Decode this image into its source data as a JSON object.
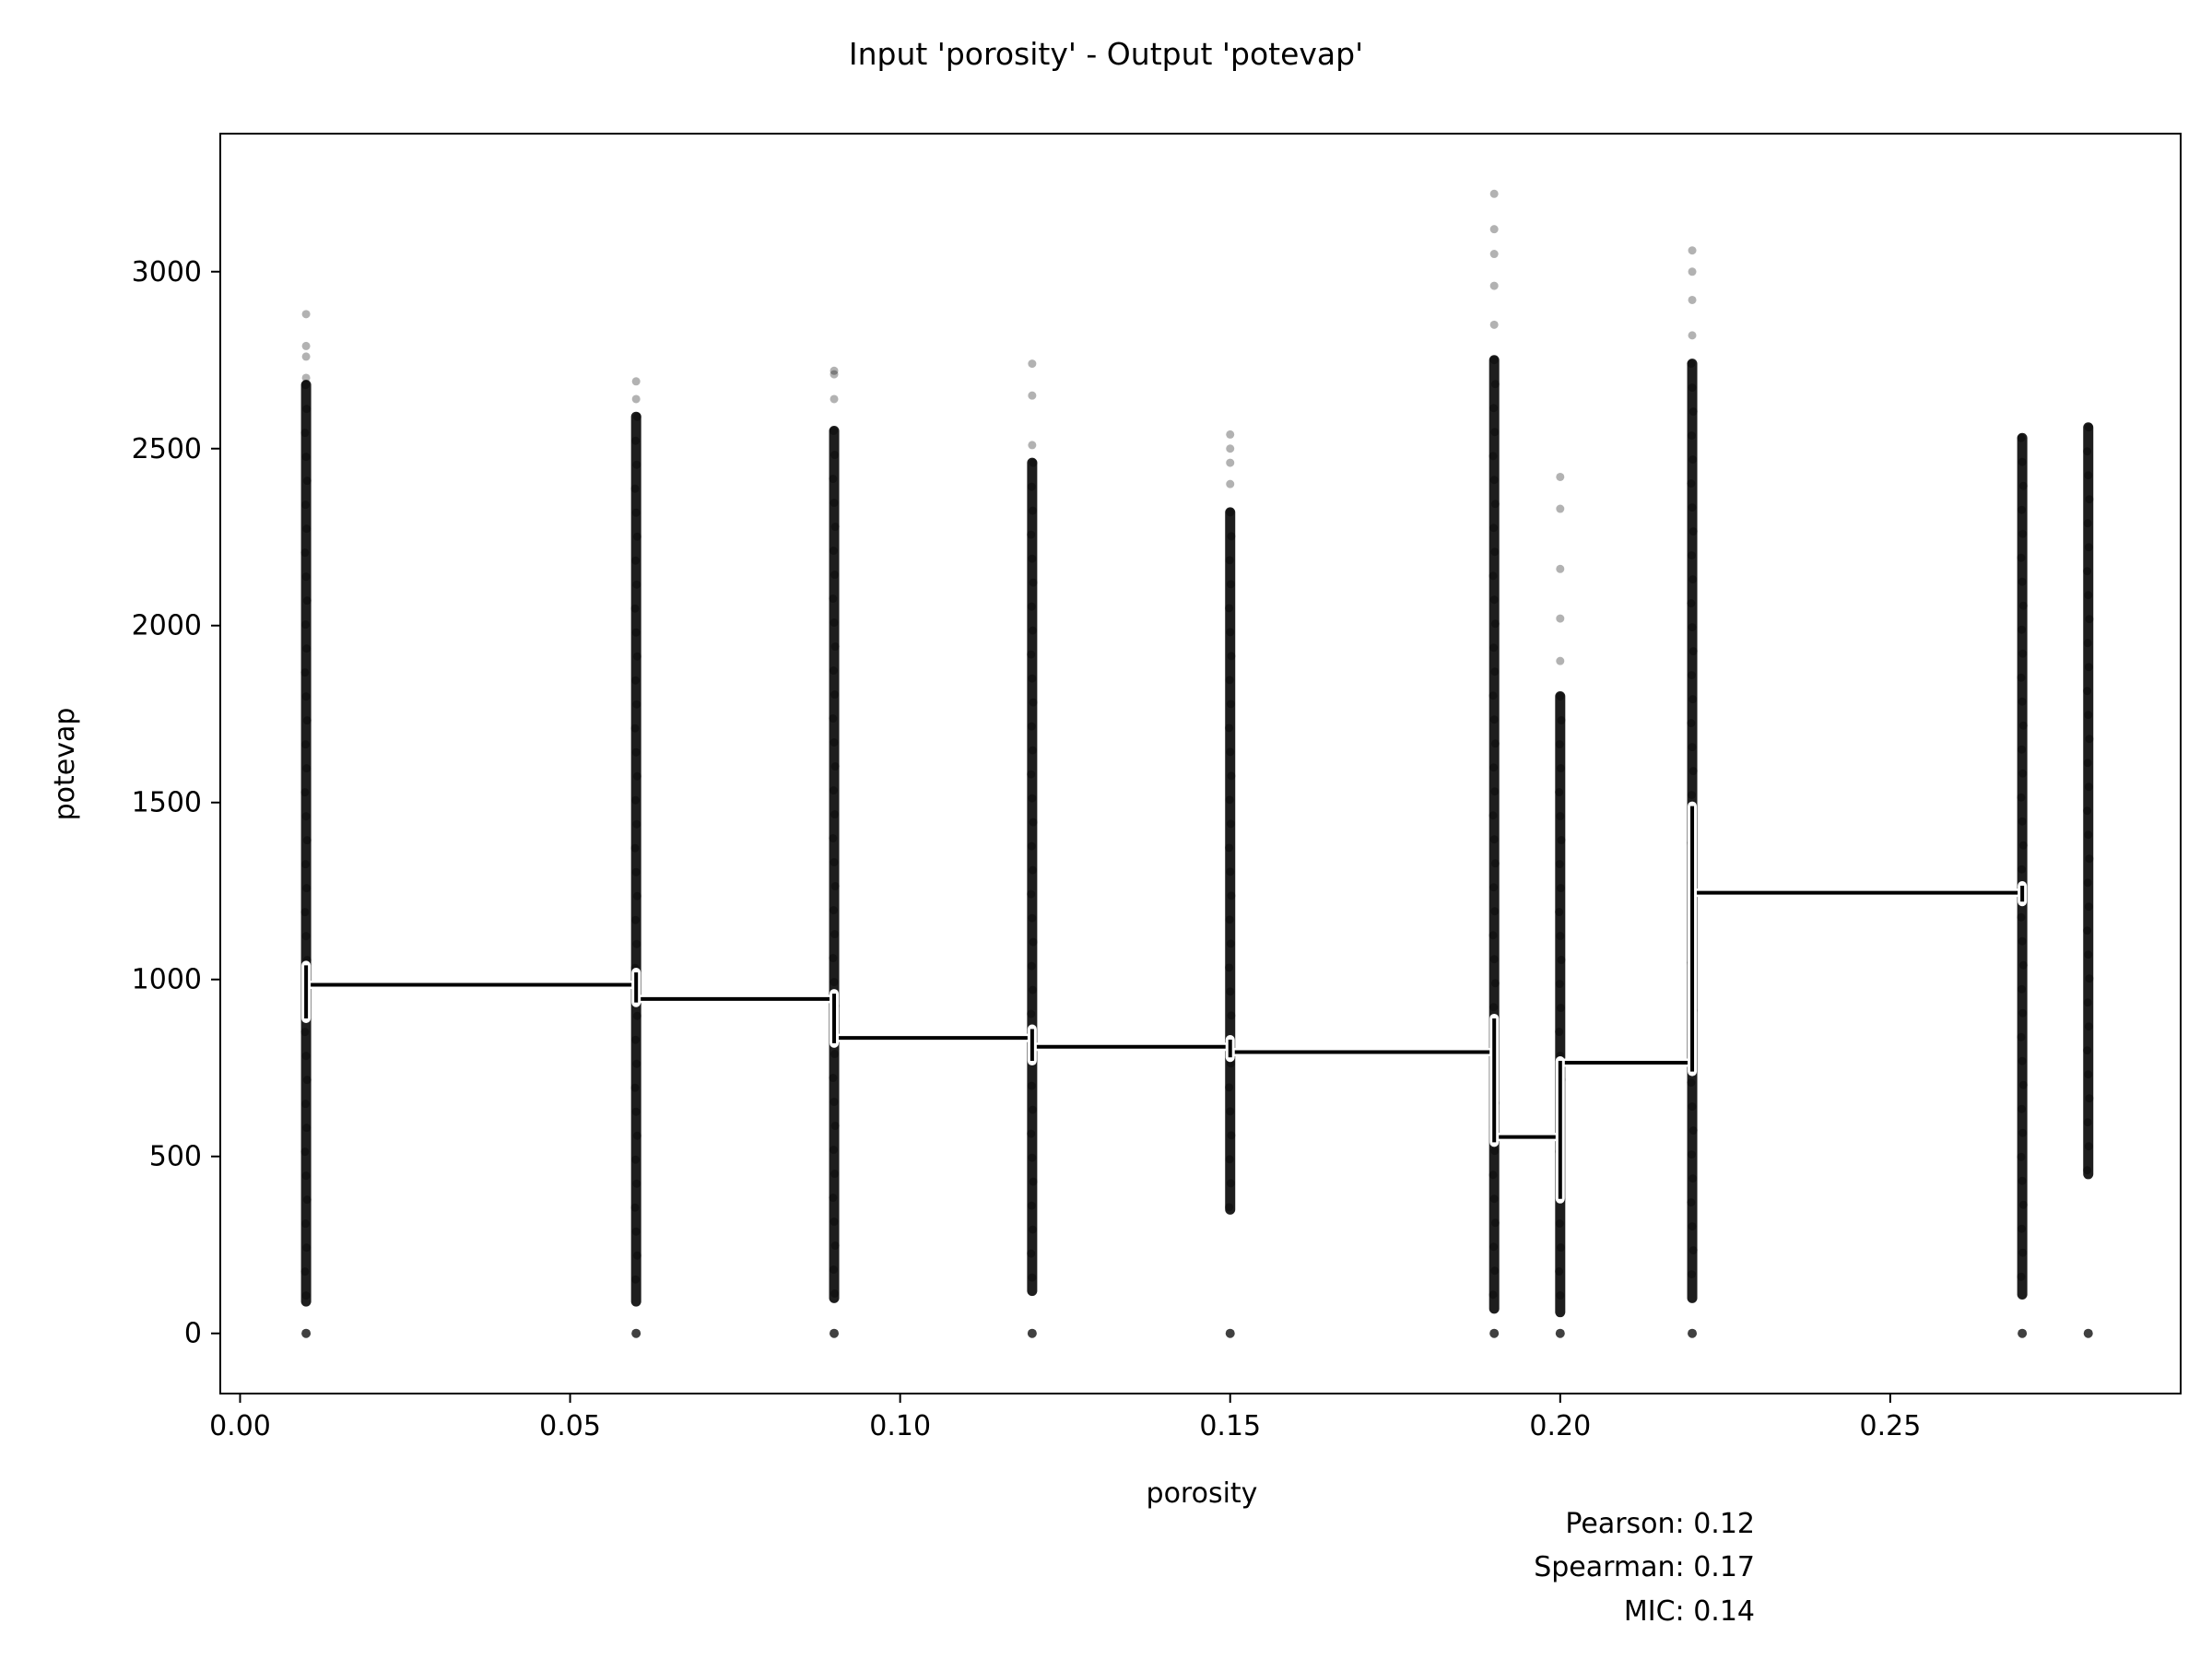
{
  "chart_data": {
    "type": "scatter",
    "title": "Input 'porosity' - Output 'potevap'",
    "xlabel": "porosity",
    "ylabel": "potevap",
    "xlim": [
      -0.003,
      0.294
    ],
    "ylim": [
      -170,
      3390
    ],
    "x_ticks": [
      0.0,
      0.05,
      0.1,
      0.15,
      0.2,
      0.25
    ],
    "x_tick_labels": [
      "0.00",
      "0.05",
      "0.10",
      "0.15",
      "0.20",
      "0.25"
    ],
    "y_ticks": [
      0,
      500,
      1000,
      1500,
      2000,
      2500,
      3000
    ],
    "y_tick_labels": [
      "0",
      "500",
      "1000",
      "1500",
      "2000",
      "2500",
      "3000"
    ],
    "grid": false,
    "point_color": "#000000",
    "line_color": "#000000",
    "scatter_columns": [
      {
        "x": 0.01,
        "min": 90,
        "max": 2680,
        "outliers": [
          2700,
          2760,
          2790,
          2880
        ],
        "has_zero": true
      },
      {
        "x": 0.06,
        "min": 90,
        "max": 2590,
        "outliers": [
          2640,
          2690
        ],
        "has_zero": true
      },
      {
        "x": 0.09,
        "min": 100,
        "max": 2550,
        "outliers": [
          2640,
          2710,
          2720
        ],
        "has_zero": true
      },
      {
        "x": 0.12,
        "min": 120,
        "max": 2460,
        "outliers": [
          2510,
          2650,
          2740
        ],
        "has_zero": true
      },
      {
        "x": 0.15,
        "min": 350,
        "max": 2320,
        "outliers": [
          2400,
          2460,
          2500,
          2540
        ],
        "has_zero": true
      },
      {
        "x": 0.19,
        "min": 70,
        "max": 2750,
        "outliers": [
          2850,
          2960,
          3050,
          3120,
          3220
        ],
        "has_zero": true
      },
      {
        "x": 0.2,
        "min": 60,
        "max": 1800,
        "outliers": [
          1900,
          2020,
          2160,
          2330,
          2420
        ],
        "has_zero": true
      },
      {
        "x": 0.22,
        "min": 100,
        "max": 2740,
        "outliers": [
          2820,
          2920,
          3000,
          3060
        ],
        "has_zero": true
      },
      {
        "x": 0.27,
        "min": 110,
        "max": 2530,
        "outliers": [],
        "has_zero": true
      },
      {
        "x": 0.28,
        "min": 450,
        "max": 2560,
        "outliers": [],
        "has_zero": true
      }
    ],
    "step_line": [
      {
        "x_start": 0.01,
        "x_end": 0.06,
        "y": 985
      },
      {
        "x_start": 0.06,
        "x_end": 0.09,
        "y": 945
      },
      {
        "x_start": 0.09,
        "x_end": 0.12,
        "y": 835
      },
      {
        "x_start": 0.12,
        "x_end": 0.15,
        "y": 810
      },
      {
        "x_start": 0.15,
        "x_end": 0.19,
        "y": 795
      },
      {
        "x_start": 0.19,
        "x_end": 0.2,
        "y": 555
      },
      {
        "x_start": 0.2,
        "x_end": 0.22,
        "y": 765
      },
      {
        "x_start": 0.22,
        "x_end": 0.27,
        "y": 1245
      }
    ],
    "error_bars": [
      {
        "x": 0.01,
        "low": 890,
        "high": 1040
      },
      {
        "x": 0.06,
        "low": 935,
        "high": 1020
      },
      {
        "x": 0.09,
        "low": 820,
        "high": 960
      },
      {
        "x": 0.12,
        "low": 770,
        "high": 860
      },
      {
        "x": 0.15,
        "low": 780,
        "high": 830
      },
      {
        "x": 0.19,
        "low": 540,
        "high": 890
      },
      {
        "x": 0.2,
        "low": 380,
        "high": 770
      },
      {
        "x": 0.22,
        "low": 740,
        "high": 1490
      },
      {
        "x": 0.27,
        "low": 1220,
        "high": 1265
      }
    ],
    "annotations": [
      "Pearson: 0.12",
      "Spearman: 0.17",
      "MIC: 0.14"
    ]
  }
}
